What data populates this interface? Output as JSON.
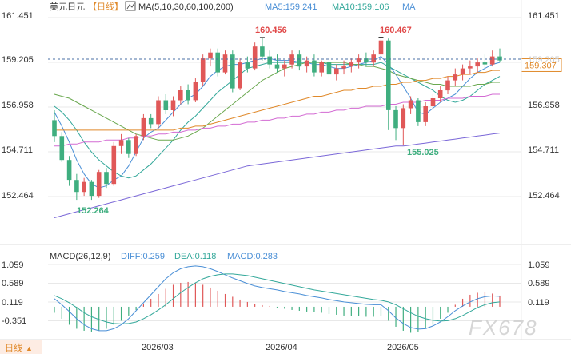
{
  "header": {
    "symbol": "美元日元",
    "period": "【日线】",
    "ma_label": "MA(5,10,30,60,100,200)",
    "ma5_text": "MA5:159.241",
    "ma10_text": "MA10:159.106",
    "ma_more": "MA"
  },
  "macd_header": {
    "label": "MACD(26,12,9)",
    "diff_text": "DIFF:0.259",
    "dea_text": "DEA:0.118",
    "macd_text": "MACD:0.283"
  },
  "price_axis": {
    "ticks": [
      "161.451",
      "159.205",
      "156.958",
      "154.711",
      "152.464"
    ],
    "current_price": "159.307",
    "right_ticks": [
      "161.451",
      "159.205",
      "156.958",
      "154.711",
      "152.464"
    ]
  },
  "macd_axis": {
    "ticks": [
      "1.059",
      "0.589",
      "0.119",
      "-0.351"
    ]
  },
  "date_axis": [
    "2026/03",
    "2026/04",
    "2026/05"
  ],
  "annotations": {
    "high1": "160.456",
    "high2": "160.467",
    "low1": "152.264",
    "low2": "155.025"
  },
  "bottom_bar": {
    "label": "日线",
    "arrow": "▲"
  },
  "watermark": "FX678",
  "colors": {
    "up": "#e05858",
    "down": "#3fae7f",
    "ma5": "#4a8fd6",
    "ma10": "#33a89a",
    "ma30": "#6aa84f",
    "ma60": "#e0892a",
    "ma100": "#d36bd3",
    "ma200": "#7b68d8",
    "annotation_red": "#e04848",
    "annotation_green": "#3fae7f",
    "axis_text": "#333333",
    "grid": "#e8e8e8"
  },
  "chart_data": [
    {
      "type": "candlestick",
      "title": "美元日元【日线】",
      "ylim": [
        151.3,
        162.0
      ],
      "y_ticks": [
        161.451,
        159.205,
        156.958,
        154.711,
        152.464
      ],
      "current": 159.307,
      "x_labels": [
        "2026/03",
        "2026/04",
        "2026/05"
      ],
      "candles": [
        [
          156.3,
          156.8,
          155.2,
          155.5
        ],
        [
          155.5,
          155.7,
          154.2,
          154.3
        ],
        [
          154.3,
          154.5,
          153.0,
          153.3
        ],
        [
          153.3,
          153.6,
          152.3,
          152.7
        ],
        [
          152.7,
          153.4,
          152.5,
          153.2
        ],
        [
          153.2,
          153.3,
          152.3,
          152.5
        ],
        [
          152.5,
          153.8,
          152.4,
          153.7
        ],
        [
          153.7,
          153.9,
          152.9,
          153.1
        ],
        [
          153.1,
          155.2,
          153.0,
          155.0
        ],
        [
          155.0,
          155.6,
          154.6,
          155.3
        ],
        [
          155.3,
          155.4,
          154.4,
          154.6
        ],
        [
          154.6,
          155.6,
          154.5,
          155.5
        ],
        [
          155.5,
          156.6,
          155.3,
          156.4
        ],
        [
          156.4,
          156.6,
          155.9,
          156.1
        ],
        [
          156.1,
          157.5,
          155.9,
          157.3
        ],
        [
          157.3,
          157.6,
          156.6,
          156.8
        ],
        [
          156.8,
          157.5,
          156.5,
          157.3
        ],
        [
          157.3,
          158.0,
          157.1,
          157.8
        ],
        [
          157.8,
          158.1,
          157.1,
          157.3
        ],
        [
          157.3,
          158.4,
          157.2,
          158.2
        ],
        [
          158.2,
          159.6,
          158.0,
          159.4
        ],
        [
          159.4,
          159.9,
          159.0,
          159.7
        ],
        [
          159.7,
          159.9,
          158.5,
          158.7
        ],
        [
          158.7,
          159.8,
          158.6,
          159.6
        ],
        [
          159.6,
          159.8,
          157.7,
          157.9
        ],
        [
          157.9,
          159.4,
          157.8,
          159.2
        ],
        [
          159.2,
          159.5,
          158.7,
          158.9
        ],
        [
          158.9,
          160.2,
          158.8,
          160.0
        ],
        [
          160.0,
          160.456,
          159.3,
          159.5
        ],
        [
          159.5,
          159.8,
          158.9,
          159.1
        ],
        [
          159.1,
          159.6,
          158.7,
          158.9
        ],
        [
          158.9,
          159.3,
          158.5,
          159.1
        ],
        [
          159.1,
          159.8,
          158.9,
          159.6
        ],
        [
          159.6,
          159.8,
          158.8,
          159.0
        ],
        [
          159.0,
          159.5,
          158.7,
          159.3
        ],
        [
          159.3,
          159.6,
          158.5,
          158.7
        ],
        [
          158.7,
          159.3,
          158.5,
          159.2
        ],
        [
          159.2,
          159.4,
          158.4,
          158.6
        ],
        [
          158.6,
          159.1,
          158.3,
          158.9
        ],
        [
          158.9,
          159.3,
          158.6,
          159.0
        ],
        [
          159.0,
          159.4,
          158.7,
          159.2
        ],
        [
          159.2,
          159.6,
          158.9,
          159.4
        ],
        [
          159.4,
          159.7,
          159.0,
          159.2
        ],
        [
          159.2,
          159.8,
          159.0,
          159.6
        ],
        [
          159.6,
          160.467,
          159.3,
          160.3
        ],
        [
          160.3,
          160.4,
          155.8,
          156.8
        ],
        [
          156.8,
          157.0,
          155.3,
          155.9
        ],
        [
          155.9,
          157.1,
          155.025,
          156.9
        ],
        [
          156.9,
          157.5,
          156.6,
          157.3
        ],
        [
          157.3,
          157.4,
          156.0,
          156.2
        ],
        [
          156.2,
          157.2,
          156.0,
          157.0
        ],
        [
          157.0,
          157.6,
          156.8,
          157.4
        ],
        [
          157.4,
          158.0,
          157.2,
          157.8
        ],
        [
          157.8,
          158.5,
          157.6,
          158.3
        ],
        [
          158.3,
          158.9,
          158.0,
          158.6
        ],
        [
          158.6,
          159.1,
          158.3,
          158.9
        ],
        [
          158.9,
          159.3,
          158.6,
          159.0
        ],
        [
          159.0,
          159.4,
          158.7,
          159.2
        ],
        [
          159.2,
          159.6,
          158.9,
          159.1
        ],
        [
          159.1,
          159.8,
          159.0,
          159.5
        ],
        [
          159.5,
          159.9,
          159.2,
          159.3
        ]
      ],
      "series": [
        {
          "name": "MA5",
          "values": [
            156.7,
            156.0,
            155.2,
            154.3,
            153.6,
            153.1,
            152.9,
            153.0,
            153.3,
            153.5,
            154.0,
            154.7,
            155.4,
            155.7,
            155.9,
            156.3,
            156.7,
            157.1,
            157.4,
            157.6,
            158.0,
            158.5,
            158.8,
            159.0,
            159.1,
            159.1,
            159.2,
            159.3,
            159.4,
            159.4,
            159.3,
            159.3,
            159.3,
            159.2,
            159.2,
            159.1,
            159.1,
            159.0,
            158.9,
            158.9,
            159.0,
            159.1,
            159.2,
            159.3,
            159.5,
            159.1,
            158.6,
            158.0,
            157.4,
            156.7,
            156.6,
            156.9,
            157.2,
            157.4,
            157.6,
            158.0,
            158.4,
            158.7,
            158.9,
            159.1,
            159.2
          ]
        },
        {
          "name": "MA10",
          "values": [
            157.0,
            156.7,
            156.3,
            155.8,
            155.2,
            154.7,
            154.3,
            154.0,
            153.7,
            153.5,
            153.4,
            153.5,
            153.8,
            154.1,
            154.5,
            154.9,
            155.3,
            155.8,
            156.2,
            156.5,
            156.9,
            157.3,
            157.7,
            158.0,
            158.3,
            158.6,
            158.9,
            159.0,
            159.1,
            159.2,
            159.2,
            159.2,
            159.2,
            159.2,
            159.2,
            159.2,
            159.2,
            159.1,
            159.1,
            159.1,
            159.1,
            159.1,
            159.1,
            159.1,
            159.2,
            159.0,
            158.8,
            158.6,
            158.4,
            158.2,
            158.0,
            157.8,
            157.5,
            157.3,
            157.2,
            157.3,
            157.5,
            157.8,
            158.1,
            158.3,
            158.5
          ]
        },
        {
          "name": "MA30",
          "values": [
            157.6,
            157.5,
            157.4,
            157.2,
            157.0,
            156.8,
            156.6,
            156.4,
            156.2,
            156.0,
            155.8,
            155.6,
            155.5,
            155.4,
            155.3,
            155.3,
            155.3,
            155.4,
            155.5,
            155.7,
            155.9,
            156.2,
            156.5,
            156.8,
            157.1,
            157.4,
            157.7,
            158.0,
            158.3,
            158.5,
            158.7,
            158.9,
            159.0,
            159.1,
            159.2,
            159.2,
            159.2,
            159.2,
            159.2,
            159.2,
            159.1,
            159.1,
            159.0,
            159.0,
            158.9,
            158.8,
            158.6,
            158.5,
            158.4,
            158.3,
            158.2,
            158.1,
            158.1,
            158.0,
            158.0,
            158.0,
            158.0,
            158.1,
            158.1,
            158.2,
            158.2
          ]
        },
        {
          "name": "MA60",
          "values": [
            155.8,
            155.8,
            155.8,
            155.8,
            155.8,
            155.8,
            155.8,
            155.8,
            155.8,
            155.8,
            155.8,
            155.8,
            155.8,
            155.8,
            155.8,
            155.8,
            155.8,
            155.9,
            155.9,
            156.0,
            156.0,
            156.1,
            156.2,
            156.3,
            156.4,
            156.5,
            156.6,
            156.7,
            156.8,
            156.9,
            157.0,
            157.1,
            157.2,
            157.3,
            157.4,
            157.5,
            157.5,
            157.6,
            157.7,
            157.8,
            157.8,
            157.9,
            157.9,
            158.0,
            158.0,
            158.1,
            158.1,
            158.2,
            158.2,
            158.3,
            158.3,
            158.4,
            158.4,
            158.5,
            158.5,
            158.6,
            158.6,
            158.7,
            158.7,
            158.8,
            158.8
          ]
        },
        {
          "name": "MA100",
          "values": [
            155.0,
            155.0,
            155.1,
            155.1,
            155.2,
            155.2,
            155.2,
            155.3,
            155.3,
            155.3,
            155.4,
            155.4,
            155.5,
            155.5,
            155.6,
            155.6,
            155.7,
            155.7,
            155.8,
            155.8,
            155.9,
            155.9,
            156.0,
            156.0,
            156.1,
            156.1,
            156.2,
            156.2,
            156.3,
            156.3,
            156.4,
            156.4,
            156.5,
            156.5,
            156.6,
            156.6,
            156.7,
            156.7,
            156.8,
            156.8,
            156.9,
            156.9,
            157.0,
            157.0,
            157.0,
            157.1,
            157.1,
            157.2,
            157.2,
            157.2,
            157.3,
            157.3,
            157.3,
            157.4,
            157.4,
            157.4,
            157.5,
            157.5,
            157.5,
            157.6,
            157.6
          ]
        },
        {
          "name": "MA200",
          "values": [
            151.4,
            151.5,
            151.6,
            151.7,
            151.8,
            151.9,
            152.0,
            152.1,
            152.2,
            152.3,
            152.4,
            152.5,
            152.6,
            152.7,
            152.8,
            152.9,
            153.0,
            153.1,
            153.2,
            153.3,
            153.4,
            153.5,
            153.6,
            153.7,
            153.8,
            153.9,
            154.0,
            154.05,
            154.1,
            154.15,
            154.2,
            154.25,
            154.3,
            154.35,
            154.4,
            154.45,
            154.5,
            154.55,
            154.6,
            154.65,
            154.7,
            154.75,
            154.8,
            154.85,
            154.9,
            154.95,
            155.0,
            155.0,
            155.05,
            155.1,
            155.15,
            155.2,
            155.25,
            155.3,
            155.35,
            155.4,
            155.45,
            155.5,
            155.55,
            155.6,
            155.65
          ]
        }
      ]
    },
    {
      "type": "bar",
      "title": "MACD(26,12,9)",
      "ylim": [
        -0.75,
        1.25
      ],
      "y_ticks": [
        1.059,
        0.589,
        0.119,
        -0.351
      ],
      "histogram": [
        -0.15,
        -0.3,
        -0.45,
        -0.55,
        -0.6,
        -0.62,
        -0.6,
        -0.55,
        -0.45,
        -0.35,
        -0.22,
        -0.08,
        0.08,
        0.2,
        0.32,
        0.45,
        0.55,
        0.6,
        0.62,
        0.6,
        0.55,
        0.48,
        0.4,
        0.32,
        0.25,
        0.18,
        0.12,
        0.07,
        0.04,
        0.02,
        -0.02,
        -0.05,
        -0.08,
        -0.1,
        -0.12,
        -0.14,
        -0.15,
        -0.18,
        -0.2,
        -0.22,
        -0.23,
        -0.24,
        -0.25,
        -0.25,
        -0.24,
        -0.35,
        -0.5,
        -0.6,
        -0.65,
        -0.62,
        -0.55,
        -0.45,
        -0.3,
        -0.15,
        0.05,
        0.2,
        0.3,
        0.35,
        0.38,
        0.33,
        0.28
      ],
      "series": [
        {
          "name": "DIFF",
          "values": [
            0.2,
            0.05,
            -0.12,
            -0.3,
            -0.45,
            -0.55,
            -0.6,
            -0.6,
            -0.55,
            -0.45,
            -0.3,
            -0.1,
            0.1,
            0.3,
            0.5,
            0.7,
            0.85,
            0.95,
            1.0,
            1.02,
            1.0,
            0.95,
            0.88,
            0.8,
            0.72,
            0.65,
            0.58,
            0.52,
            0.48,
            0.45,
            0.42,
            0.38,
            0.35,
            0.32,
            0.28,
            0.25,
            0.22,
            0.18,
            0.15,
            0.12,
            0.1,
            0.08,
            0.06,
            0.05,
            0.05,
            -0.1,
            -0.28,
            -0.42,
            -0.52,
            -0.56,
            -0.55,
            -0.48,
            -0.38,
            -0.25,
            -0.1,
            0.02,
            0.12,
            0.2,
            0.25,
            0.27,
            0.26
          ]
        },
        {
          "name": "DEA",
          "values": [
            0.28,
            0.2,
            0.1,
            -0.02,
            -0.15,
            -0.25,
            -0.32,
            -0.38,
            -0.42,
            -0.43,
            -0.42,
            -0.38,
            -0.3,
            -0.2,
            -0.08,
            0.05,
            0.2,
            0.35,
            0.48,
            0.6,
            0.7,
            0.76,
            0.8,
            0.82,
            0.82,
            0.8,
            0.78,
            0.74,
            0.7,
            0.66,
            0.62,
            0.58,
            0.54,
            0.5,
            0.46,
            0.42,
            0.39,
            0.36,
            0.33,
            0.3,
            0.27,
            0.24,
            0.21,
            0.18,
            0.16,
            0.12,
            0.05,
            -0.05,
            -0.15,
            -0.24,
            -0.3,
            -0.34,
            -0.36,
            -0.35,
            -0.3,
            -0.22,
            -0.12,
            -0.02,
            0.05,
            0.1,
            0.12
          ]
        }
      ]
    }
  ]
}
